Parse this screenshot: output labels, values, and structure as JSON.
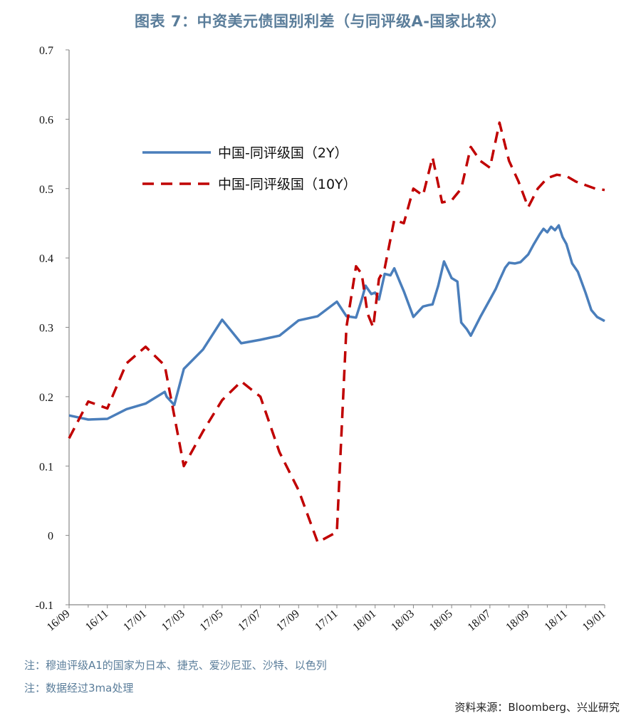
{
  "title": "图表 7：中资美元债国别利差（与同评级A-国家比较）",
  "notes": [
    "注：穆迪评级A1的国家为日本、捷克、爱沙尼亚、沙特、以色列",
    "注：数据经过3ma处理"
  ],
  "source": "资料来源：Bloomberg、兴业研究",
  "chart_data": {
    "type": "line",
    "title": "图表 7：中资美元债国别利差（与同评级A-国家比较）",
    "xlabel": "",
    "ylabel": "",
    "ylim": [
      -0.1,
      0.7
    ],
    "yticks": [
      "0.7",
      "0.6",
      "0.5",
      "0.4",
      "0.3",
      "0.2",
      "0.1",
      "0",
      "-0.1"
    ],
    "ytick_values": [
      0.7,
      0.6,
      0.5,
      0.4,
      0.3,
      0.2,
      0.1,
      0,
      -0.1
    ],
    "xticks": [
      "16/09",
      "16/11",
      "17/01",
      "17/03",
      "17/05",
      "17/07",
      "17/09",
      "17/11",
      "18/01",
      "18/03",
      "18/05",
      "18/07",
      "18/09",
      "18/11",
      "19/01"
    ],
    "xrange_months": [
      0,
      28
    ],
    "legend_position": "upper-left",
    "series": [
      {
        "name": "中国-同评级国（2Y）",
        "color": "#4a7ebb",
        "style": "solid",
        "x": [
          0,
          0.5,
          1,
          2,
          3,
          4,
          5,
          5.1,
          5.5,
          6,
          7,
          8,
          9,
          10,
          11,
          12,
          13,
          14,
          14.5,
          15,
          15.3,
          15.5,
          15.8,
          16,
          16.2,
          16.5,
          16.8,
          17,
          17.3,
          17.5,
          18,
          18.2,
          18.5,
          18.8,
          19,
          19.3,
          19.6,
          20,
          20.3,
          20.5,
          20.8,
          21,
          21.5,
          22,
          22.3,
          22.5,
          22.8,
          23,
          23.3,
          23.6,
          24,
          24.3,
          24.6,
          24.8,
          25,
          25.2,
          25.4,
          25.6,
          25.8,
          26,
          26.3,
          26.6,
          27,
          27.3,
          27.6,
          28
        ],
        "y": [
          0.173,
          0.17,
          0.167,
          0.168,
          0.182,
          0.19,
          0.207,
          0.2,
          0.188,
          0.24,
          0.268,
          0.311,
          0.277,
          0.282,
          0.288,
          0.31,
          0.316,
          0.337,
          0.316,
          0.314,
          0.34,
          0.36,
          0.348,
          0.35,
          0.34,
          0.377,
          0.375,
          0.385,
          0.365,
          0.352,
          0.315,
          0.321,
          0.33,
          0.332,
          0.333,
          0.36,
          0.395,
          0.371,
          0.366,
          0.307,
          0.297,
          0.288,
          0.315,
          0.34,
          0.355,
          0.368,
          0.386,
          0.393,
          0.392,
          0.394,
          0.405,
          0.42,
          0.434,
          0.442,
          0.437,
          0.445,
          0.44,
          0.447,
          0.43,
          0.42,
          0.392,
          0.38,
          0.35,
          0.325,
          0.315,
          0.309
        ]
      },
      {
        "name": "中国-同评级国（10Y）",
        "color": "#c00000",
        "style": "dashed",
        "x": [
          0,
          1,
          2,
          3,
          4,
          5,
          6,
          7,
          8,
          9,
          10,
          11,
          12,
          13,
          14,
          14.5,
          15,
          15.3,
          15.6,
          15.9,
          16.2,
          16.5,
          17,
          17.5,
          18,
          18.5,
          19,
          19.5,
          20,
          20.5,
          21,
          21.5,
          22,
          22.5,
          23,
          23.5,
          24,
          24.5,
          25,
          25.5,
          26,
          26.5,
          27,
          27.5,
          28
        ],
        "y": [
          0.14,
          0.193,
          0.183,
          0.248,
          0.272,
          0.245,
          0.1,
          0.15,
          0.195,
          0.222,
          0.2,
          0.12,
          0.065,
          -0.01,
          0.005,
          0.3,
          0.388,
          0.377,
          0.32,
          0.3,
          0.37,
          0.385,
          0.455,
          0.45,
          0.5,
          0.49,
          0.545,
          0.48,
          0.483,
          0.5,
          0.56,
          0.54,
          0.53,
          0.595,
          0.54,
          0.51,
          0.473,
          0.5,
          0.515,
          0.52,
          0.518,
          0.51,
          0.505,
          0.5,
          0.498
        ]
      }
    ]
  }
}
